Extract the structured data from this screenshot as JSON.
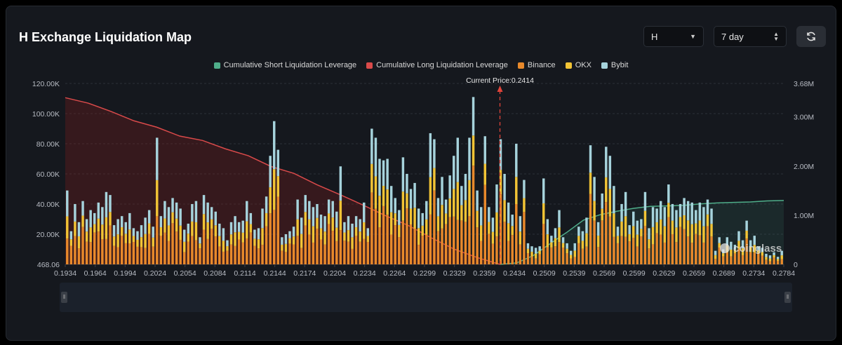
{
  "header": {
    "title": "H Exchange Liquidation Map",
    "symbol_select": "H",
    "range_select": "7 day"
  },
  "legend": [
    {
      "label": "Cumulative Short Liquidation Leverage",
      "color": "#4fae8a"
    },
    {
      "label": "Cumulative Long Liquidation Leverage",
      "color": "#d94a4a"
    },
    {
      "label": "Binance",
      "color": "#e8892b"
    },
    {
      "label": "OKX",
      "color": "#f2c435"
    },
    {
      "label": "Bybit",
      "color": "#a6d3dc"
    }
  ],
  "watermark": "coinglass",
  "chart_data": {
    "type": "bar",
    "current_price_label": "Current Price:0.2414",
    "current_price": 0.2414,
    "x_tick_labels": [
      "0.1934",
      "0.1964",
      "0.1994",
      "0.2024",
      "0.2054",
      "0.2084",
      "0.2114",
      "0.2144",
      "0.2174",
      "0.2204",
      "0.2234",
      "0.2264",
      "0.2299",
      "0.2329",
      "0.2359",
      "0.2434",
      "0.2509",
      "0.2539",
      "0.2569",
      "0.2599",
      "0.2629",
      "0.2659",
      "0.2689",
      "0.2734",
      "0.2784"
    ],
    "y_left": {
      "ticks": [
        "468.06",
        "20.00K",
        "40.00K",
        "60.00K",
        "80.00K",
        "100.00K",
        "120.00K"
      ],
      "range": [
        0,
        120000
      ]
    },
    "y_right": {
      "ticks": [
        "0",
        "1.00M",
        "2.00M",
        "3.00M",
        "3.68M"
      ],
      "range": [
        0,
        3680000
      ]
    },
    "categories": [
      "0.1934",
      "0.1964",
      "0.1994",
      "0.2024",
      "0.2054",
      "0.2084",
      "0.2114",
      "0.2144",
      "0.2174",
      "0.2204",
      "0.2234",
      "0.2264",
      "0.2299",
      "0.2329",
      "0.2359",
      "0.2434",
      "0.2509",
      "0.2539",
      "0.2569",
      "0.2599",
      "0.2629",
      "0.2659",
      "0.2689",
      "0.2734",
      "0.2784"
    ],
    "bar_totals": [
      49000,
      22000,
      40000,
      28000,
      42000,
      30000,
      36000,
      34000,
      41000,
      38000,
      48000,
      46000,
      26000,
      30000,
      32000,
      28000,
      34000,
      24000,
      22000,
      26000,
      31000,
      36000,
      25000,
      84000,
      32000,
      42000,
      38000,
      44000,
      41000,
      37000,
      23000,
      27000,
      40000,
      42000,
      18000,
      46000,
      41000,
      38000,
      35000,
      27000,
      24000,
      16000,
      28000,
      32000,
      28000,
      29000,
      42000,
      34000,
      23000,
      24000,
      37000,
      45000,
      72000,
      95000,
      76000,
      18000,
      20000,
      22000,
      25000,
      43000,
      31000,
      46000,
      42000,
      38000,
      40000,
      33000,
      32000,
      43000,
      42000,
      35000,
      65000,
      28000,
      32000,
      27000,
      32000,
      30000,
      41000,
      24000,
      90000,
      84000,
      70000,
      69000,
      70000,
      52000,
      44000,
      36000,
      71000,
      60000,
      50000,
      54000,
      37000,
      34000,
      42000,
      87000,
      83000,
      44000,
      58000,
      43000,
      59000,
      72000,
      84000,
      52000,
      60000,
      84000,
      111000,
      49000,
      38000,
      85000,
      38000,
      31000,
      53000,
      83000,
      60000,
      41000,
      33000,
      80000,
      32000,
      56000,
      14000,
      12000,
      11000,
      12000,
      57000,
      30000,
      19000,
      24000,
      36000,
      18000,
      14000,
      9000,
      14000,
      25000,
      22000,
      31000,
      79000,
      58000,
      28000,
      47000,
      78000,
      72000,
      52000,
      25000,
      40000,
      48000,
      26000,
      35000,
      29000,
      30000,
      48000,
      24000,
      38000,
      37000,
      42000,
      38000,
      53000,
      40000,
      36000,
      40000,
      44000,
      42000,
      41000,
      36000,
      41000,
      38000,
      43000,
      37000,
      9000,
      18000,
      10000,
      18000,
      15000,
      13000,
      22000,
      16000,
      29000,
      16000,
      19000,
      12000,
      11000,
      7000,
      6000,
      8000,
      5000,
      9000
    ],
    "long_cumulative": [
      3390000,
      3280000,
      3110000,
      2920000,
      2790000,
      2610000,
      2520000,
      2350000,
      2210000,
      1990000,
      1850000,
      1620000,
      1420000,
      1210000,
      990000,
      790000,
      540000,
      310000,
      140000,
      0
    ],
    "short_cumulative": [
      0,
      30000,
      180000,
      420000,
      650000,
      900000,
      1010000,
      1080000,
      1140000,
      1180000,
      1190000,
      1200000,
      1230000,
      1250000,
      1260000,
      1270000,
      1290000,
      1300000
    ]
  }
}
